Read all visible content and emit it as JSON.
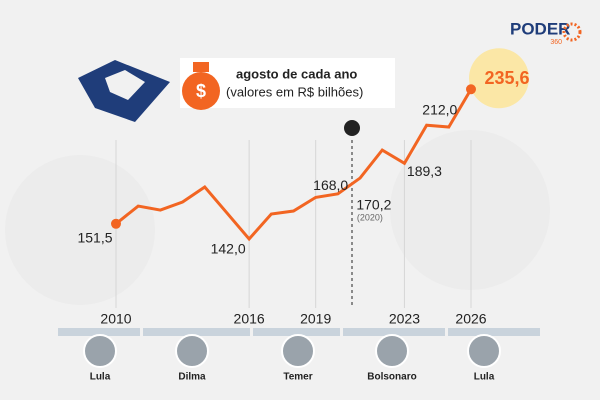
{
  "brand": {
    "name": "PODER",
    "sub": "360"
  },
  "legend_box": {
    "line1": "agosto de cada ano",
    "line2": "(valores em R$ bilhões)"
  },
  "chart_data": {
    "type": "line",
    "x": [
      2010,
      2011,
      2012,
      2013,
      2014,
      2015,
      2016,
      2017,
      2018,
      2019,
      2020,
      2021,
      2022,
      2023,
      2024,
      2025,
      2026
    ],
    "series": [
      {
        "color": "#f26522",
        "values": [
          151.5,
          162.6,
          160.1,
          165.1,
          174.5,
          158.3,
          142.0,
          157.6,
          159.5,
          168.0,
          170.2,
          180.1,
          197.6,
          189.3,
          213.1,
          212.0,
          235.6
        ],
        "value_labels": [
          "151,5",
          null,
          null,
          null,
          null,
          null,
          "142,0",
          null,
          null,
          "168,0",
          "170,2",
          null,
          null,
          "189,3",
          null,
          "212,0",
          "235,6"
        ]
      }
    ],
    "annotations": [
      {
        "text": "(2020)"
      }
    ],
    "xlim": [
      2010,
      2026
    ],
    "ylim": [
      100,
      260
    ],
    "xticks": [
      2010,
      2016,
      2019,
      2023,
      2026
    ]
  },
  "presidents": [
    "Lula",
    "Dilma",
    "Temer",
    "Bolsonaro",
    "Lula"
  ]
}
